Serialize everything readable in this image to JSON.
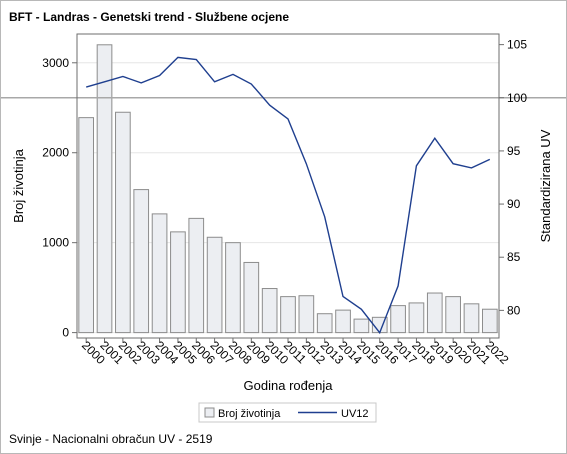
{
  "title": "BFT - Landras - Genetski trend - Službene ocjene",
  "footer": "Svinje - Nacionalni obračun UV - 2519",
  "colors": {
    "bar_fill": "#eceef2",
    "bar_stroke": "#8c8c8c",
    "line": "#1f3f8f",
    "axis": "#6e6e6e",
    "grid": "#e6e6e6",
    "refline": "#a8a8a8"
  },
  "chart_data": {
    "type": "bar",
    "xlabel": "Godina rođenja",
    "ylabel": "Broj životinja",
    "y2label": "Standardizirana UV",
    "categories": [
      "2000",
      "2001",
      "2002",
      "2003",
      "2004",
      "2005",
      "2006",
      "2007",
      "2008",
      "2009",
      "2010",
      "2011",
      "2012",
      "2013",
      "2014",
      "2015",
      "2016",
      "2017",
      "2018",
      "2019",
      "2020",
      "2021",
      "2022"
    ],
    "series": [
      {
        "name": "Broj životinja",
        "type": "bar",
        "axis": "left",
        "values": [
          2390,
          3200,
          2450,
          1590,
          1320,
          1120,
          1270,
          1060,
          1000,
          780,
          490,
          400,
          410,
          210,
          250,
          150,
          170,
          300,
          330,
          440,
          400,
          320,
          260
        ]
      },
      {
        "name": "UV12",
        "type": "line",
        "axis": "right",
        "values": [
          101.0,
          101.5,
          102.0,
          101.4,
          102.1,
          103.8,
          103.6,
          101.5,
          102.2,
          101.3,
          99.3,
          98.0,
          93.8,
          88.8,
          81.3,
          80.1,
          77.9,
          82.3,
          93.6,
          96.2,
          93.8,
          93.4,
          94.2
        ]
      }
    ],
    "ylim": [
      -60,
      3320
    ],
    "yticks": [
      0,
      1000,
      2000,
      3000
    ],
    "y2lim": [
      77.4,
      106.0
    ],
    "y2ticks": [
      80,
      85,
      90,
      95,
      100,
      105
    ],
    "y2_reference": 100,
    "grid": true,
    "legend": "bottom"
  }
}
